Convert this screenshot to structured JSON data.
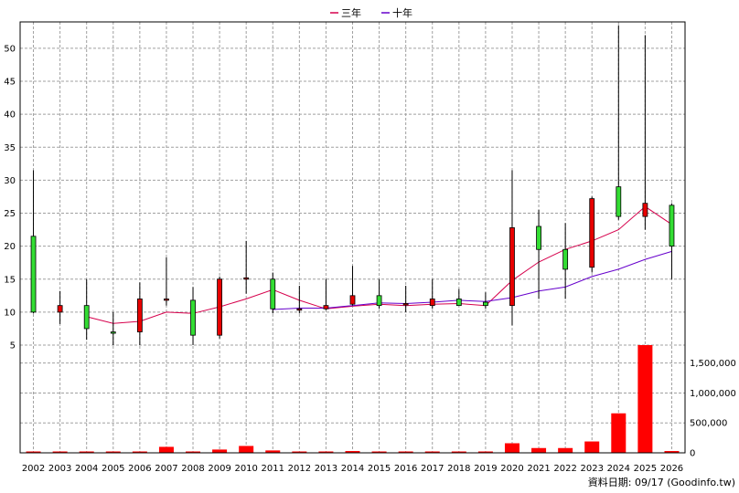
{
  "legend": [
    {
      "name": "三年",
      "color": "#d6004c"
    },
    {
      "name": "十年",
      "color": "#6600cc"
    }
  ],
  "source_text": "資料日期: 09/17  (Goodinfo.tw)",
  "colors": {
    "up": "#e80000",
    "down": "#33dd33",
    "volume": "#ff0000",
    "grid": "#a0a0a0"
  },
  "chart_data": {
    "type": "candlestick",
    "categories": [
      "2002",
      "2003",
      "2004",
      "2005",
      "2006",
      "2007",
      "2008",
      "2009",
      "2010",
      "2011",
      "2012",
      "2013",
      "2014",
      "2015",
      "2016",
      "2017",
      "2018",
      "2019",
      "2020",
      "2021",
      "2022",
      "2023",
      "2024",
      "2025",
      "2026"
    ],
    "price_axis": {
      "ticks": [
        5,
        10,
        15,
        20,
        25,
        30,
        35,
        40,
        45,
        50
      ],
      "labels": [
        "5",
        "10",
        "15",
        "20",
        "25",
        "30",
        "35",
        "40",
        "45",
        "50"
      ],
      "range": [
        5,
        54
      ]
    },
    "volume_axis": {
      "ticks": [
        0,
        500000,
        1000000,
        1500000
      ],
      "labels": [
        "0",
        "500,000",
        "1,000,000",
        "1,500,000"
      ],
      "range": [
        0,
        1800000
      ]
    },
    "candles": [
      {
        "year": "2002",
        "open": 21.5,
        "high": 31.5,
        "low": 9.8,
        "close": 10.0
      },
      {
        "year": "2003",
        "open": 10.0,
        "high": 13.2,
        "low": 8.2,
        "close": 11.0
      },
      {
        "year": "2004",
        "open": 11.0,
        "high": 15.0,
        "low": 5.8,
        "close": 7.5
      },
      {
        "year": "2005",
        "open": 7.0,
        "high": 10.0,
        "low": 5.0,
        "close": 6.8
      },
      {
        "year": "2006",
        "open": 7.0,
        "high": 14.5,
        "low": 5.0,
        "close": 12.0
      },
      {
        "year": "2007",
        "open": 11.8,
        "high": 18.3,
        "low": 11.0,
        "close": 12.0
      },
      {
        "year": "2008",
        "open": 11.8,
        "high": 13.8,
        "low": 5.0,
        "close": 6.5
      },
      {
        "year": "2009",
        "open": 6.5,
        "high": 15.4,
        "low": 6.0,
        "close": 15.0
      },
      {
        "year": "2010",
        "open": 15.0,
        "high": 20.8,
        "low": 12.8,
        "close": 15.2
      },
      {
        "year": "2011",
        "open": 15.0,
        "high": 16.0,
        "low": 9.8,
        "close": 10.5
      },
      {
        "year": "2012",
        "open": 10.5,
        "high": 14.0,
        "low": 9.8,
        "close": 10.5
      },
      {
        "year": "2013",
        "open": 10.5,
        "high": 15.0,
        "low": 10.3,
        "close": 11.0
      },
      {
        "year": "2014",
        "open": 11.2,
        "high": 17.0,
        "low": 11.0,
        "close": 12.5
      },
      {
        "year": "2015",
        "open": 12.5,
        "high": 15.0,
        "low": 10.5,
        "close": 11.0
      },
      {
        "year": "2016",
        "open": 11.2,
        "high": 14.0,
        "low": 10.0,
        "close": 11.3
      },
      {
        "year": "2017",
        "open": 11.0,
        "high": 15.0,
        "low": 10.5,
        "close": 12.0
      },
      {
        "year": "2018",
        "open": 12.0,
        "high": 13.5,
        "low": 11.0,
        "close": 11.0
      },
      {
        "year": "2019",
        "open": 11.5,
        "high": 13.0,
        "low": 10.5,
        "close": 11.0
      },
      {
        "year": "2020",
        "open": 11.0,
        "high": 31.5,
        "low": 8.0,
        "close": 22.8
      },
      {
        "year": "2021",
        "open": 23.0,
        "high": 25.5,
        "low": 12.0,
        "close": 19.5
      },
      {
        "year": "2022",
        "open": 19.5,
        "high": 23.5,
        "low": 12.0,
        "close": 16.5
      },
      {
        "year": "2023",
        "open": 16.8,
        "high": 27.5,
        "low": 16.0,
        "close": 27.2
      },
      {
        "year": "2024",
        "open": 29.0,
        "high": 53.5,
        "low": 24.0,
        "close": 24.5
      },
      {
        "year": "2025",
        "open": 24.5,
        "high": 52.0,
        "low": 22.5,
        "close": 26.5
      },
      {
        "year": "2026",
        "open": 26.2,
        "high": 26.5,
        "low": 15.0,
        "close": 20.0
      }
    ],
    "series": [
      {
        "name": "三年",
        "values": [
          null,
          null,
          9.3,
          8.3,
          8.6,
          10.0,
          9.8,
          10.8,
          12.0,
          13.4,
          11.8,
          10.5,
          10.9,
          11.2,
          11.0,
          11.2,
          11.3,
          11.0,
          14.8,
          17.6,
          19.5,
          20.8,
          22.5,
          26.0,
          23.3
        ]
      },
      {
        "name": "十年",
        "values": [
          null,
          null,
          null,
          null,
          null,
          null,
          null,
          null,
          null,
          10.4,
          10.6,
          10.6,
          11.0,
          11.4,
          11.3,
          11.5,
          11.8,
          11.6,
          12.2,
          13.2,
          13.8,
          15.4,
          16.5,
          18.0,
          19.2
        ]
      }
    ],
    "volume": [
      0,
      0,
      0,
      0,
      20000,
      100000,
      0,
      55000,
      115000,
      40000,
      0,
      0,
      30000,
      0,
      0,
      0,
      0,
      0,
      160000,
      80000,
      80000,
      190000,
      660000,
      1800000,
      30000
    ]
  }
}
